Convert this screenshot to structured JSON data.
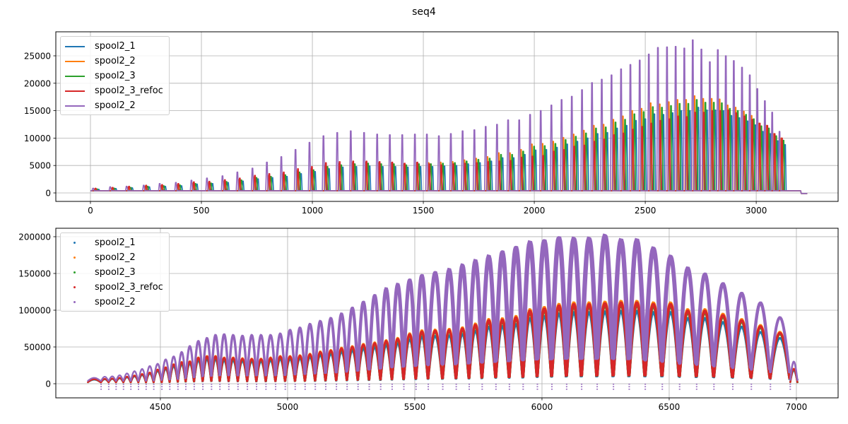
{
  "title": "seq4",
  "colors": {
    "spool2_1": "#1f77b4",
    "spool2_2": "#ff7f0e",
    "spool2_3": "#2ca02c",
    "spool2_3_refoc": "#d62728",
    "spool2_2b": "#9467bd"
  },
  "chart_data": [
    {
      "type": "line",
      "title": "seq4",
      "xlabel": "",
      "ylabel": "",
      "xlim": [
        -156,
        3369
      ],
      "ylim": [
        -1546,
        29380
      ],
      "grid": true,
      "legend_placement": "top-left",
      "xticks": [
        "0",
        "500",
        "1000",
        "1500",
        "2000",
        "2500",
        "3000"
      ],
      "xtick_values": [
        0,
        500,
        1000,
        1500,
        2000,
        2500,
        3000
      ],
      "yticks": [
        "0",
        "5000",
        "10000",
        "15000",
        "20000",
        "25000"
      ],
      "ytick_values": [
        0,
        5000,
        10000,
        15000,
        20000,
        25000
      ],
      "baseline": 400,
      "x_end": 3200,
      "peak_x": [
        12,
        89,
        163,
        240,
        312,
        385,
        455,
        525,
        595,
        662,
        730,
        795,
        860,
        924,
        987,
        1050,
        1112,
        1173,
        1233,
        1292,
        1349,
        1405,
        1462,
        1516,
        1570,
        1624,
        1677,
        1730,
        1781,
        1832,
        1882,
        1932,
        1981,
        2029,
        2077,
        2123,
        2169,
        2215,
        2260,
        2304,
        2348,
        2391,
        2433,
        2475,
        2516,
        2557,
        2598,
        2637,
        2676,
        2714,
        2753,
        2791,
        2827,
        2863,
        2899,
        2936,
        2971,
        3005,
        3039,
        3072,
        3105
      ],
      "series": [
        {
          "name": "spool2_1",
          "color_key": "spool2_1",
          "offset": 25,
          "peaks": [
            650,
            800,
            920,
            1100,
            1200,
            1300,
            1600,
            1700,
            1900,
            2150,
            2550,
            2800,
            3000,
            3500,
            3900,
            4400,
            4700,
            4800,
            4900,
            4800,
            4800,
            4700,
            4800,
            4800,
            4900,
            5000,
            5300,
            5500,
            5800,
            6400,
            6400,
            7000,
            7800,
            7900,
            8300,
            8900,
            9400,
            10000,
            10800,
            11000,
            11800,
            12300,
            13200,
            13500,
            14400,
            14300,
            14600,
            15000,
            15000,
            15600,
            15100,
            15100,
            15000,
            14100,
            13700,
            13100,
            12400,
            11200,
            10800,
            9500,
            8800
          ]
        },
        {
          "name": "spool2_2",
          "color_key": "spool2_2",
          "offset": 8,
          "peaks": [
            750,
            900,
            1050,
            1250,
            1350,
            1500,
            1800,
            1900,
            2150,
            2450,
            2900,
            3150,
            3450,
            4000,
            4400,
            5000,
            5300,
            5500,
            5600,
            5500,
            5500,
            5300,
            5500,
            5500,
            5600,
            5700,
            6000,
            6300,
            6600,
            7300,
            7300,
            7900,
            8900,
            9000,
            9400,
            10100,
            10700,
            11400,
            12300,
            12500,
            13400,
            14000,
            15000,
            15400,
            16400,
            16200,
            16600,
            17000,
            17000,
            17700,
            17200,
            17200,
            17100,
            16000,
            15600,
            14900,
            14100,
            12700,
            12300,
            10800,
            10000
          ]
        },
        {
          "name": "spool2_3",
          "color_key": "spool2_3",
          "offset": 18,
          "peaks": [
            720,
            860,
            1000,
            1200,
            1300,
            1450,
            1700,
            1800,
            2050,
            2350,
            2800,
            3000,
            3300,
            3800,
            4200,
            4800,
            5100,
            5300,
            5400,
            5300,
            5300,
            5100,
            5300,
            5300,
            5400,
            5500,
            5800,
            6100,
            6300,
            7000,
            7000,
            7600,
            8500,
            8600,
            9000,
            9700,
            10300,
            10900,
            11800,
            12000,
            12900,
            13400,
            14400,
            14800,
            15700,
            15600,
            15900,
            16300,
            16300,
            17000,
            16500,
            16500,
            16400,
            15400,
            15000,
            14300,
            13500,
            12200,
            11800,
            10400,
            9600
          ]
        },
        {
          "name": "spool2_3_refoc",
          "color_key": "spool2_3_refoc",
          "offset": 11,
          "peaks": [
            850,
            1000,
            1200,
            1400,
            1500,
            1700,
            2000,
            2100,
            2400,
            2700,
            3200,
            3500,
            3800,
            4400,
            4800,
            5500,
            5700,
            5800,
            5800,
            5700,
            5600,
            5400,
            5600,
            5300,
            5100,
            5300,
            5400,
            5500,
            5700,
            5800,
            5900,
            6500,
            6700,
            6800,
            7600,
            7900,
            8500,
            8700,
            9400,
            9800,
            10600,
            10900,
            11600,
            12100,
            12700,
            13200,
            13500,
            14000,
            13900,
            14700,
            14700,
            15000,
            15000,
            15100,
            14600,
            14000,
            13400,
            12700,
            12300,
            10800,
            10000
          ]
        },
        {
          "name": "spool2_2",
          "color_key": "spool2_2b",
          "offset": 0,
          "peaks": [
            850,
            1100,
            1200,
            1400,
            1700,
            1900,
            2300,
            2700,
            3100,
            3800,
            4500,
            5600,
            6600,
            7900,
            9200,
            10400,
            11000,
            11300,
            11000,
            10700,
            10600,
            10600,
            10700,
            10700,
            10400,
            10800,
            11300,
            11500,
            12100,
            12500,
            13300,
            13300,
            14300,
            15000,
            16000,
            17000,
            17600,
            18800,
            20100,
            20700,
            21500,
            22600,
            23400,
            24200,
            25300,
            26500,
            26600,
            26700,
            26400,
            27900,
            26200,
            23900,
            26100,
            25000,
            24100,
            22900,
            21500,
            19000,
            16800,
            14700,
            11200
          ]
        }
      ]
    },
    {
      "type": "scatter",
      "title": "",
      "xlabel": "",
      "ylabel": "",
      "xlim": [
        4089,
        7164
      ],
      "ylim": [
        -19230,
        211500
      ],
      "grid": true,
      "legend_placement": "top-left",
      "xticks": [
        "4500",
        "5000",
        "5500",
        "6000",
        "6500",
        "7000"
      ],
      "xtick_values": [
        4500,
        5000,
        5500,
        6000,
        6500,
        7000
      ],
      "yticks": [
        "0",
        "50000",
        "100000",
        "150000",
        "200000"
      ],
      "ytick_values": [
        0,
        50000,
        100000,
        150000,
        200000
      ],
      "cycle_edges": [
        4215,
        4267,
        4297,
        4326,
        4355,
        4384,
        4414,
        4444,
        4474,
        4506,
        4537,
        4569,
        4600,
        4633,
        4667,
        4701,
        4734,
        4769,
        4805,
        4842,
        4878,
        4915,
        4953,
        4991,
        5030,
        5069,
        5109,
        5150,
        5192,
        5234,
        5277,
        5321,
        5366,
        5411,
        5457,
        5505,
        5553,
        5610,
        5663,
        5714,
        5765,
        5819,
        5872,
        5926,
        5982,
        6039,
        6097,
        6156,
        6217,
        6281,
        6343,
        6406,
        6473,
        6541,
        6608,
        6676,
        6750,
        6823,
        6898,
        6976,
        7005
      ],
      "trough_ratio": 0.18,
      "dropout_min": -9000,
      "purple_peaks": [
        8000,
        9500,
        10000,
        11500,
        14000,
        17000,
        20000,
        24000,
        27000,
        33000,
        37000,
        43000,
        51000,
        58000,
        62000,
        66000,
        67000,
        66000,
        65000,
        66000,
        66000,
        66000,
        68000,
        73000,
        76000,
        81000,
        85000,
        89000,
        95000,
        103000,
        111000,
        120000,
        129000,
        135000,
        141000,
        147000,
        151000,
        155000,
        161000,
        167000,
        173000,
        179000,
        185000,
        192000,
        194000,
        198000,
        197000,
        197000,
        201000,
        195000,
        195000,
        184000,
        173000,
        157000,
        149000,
        136000,
        123000,
        110000,
        90000,
        30000
      ],
      "refoc_peaks": [
        6000,
        6500,
        7000,
        8000,
        9500,
        11000,
        13000,
        15000,
        19000,
        22000,
        26000,
        29000,
        30000,
        35000,
        37000,
        37000,
        35000,
        35000,
        34000,
        33500,
        33500,
        35000,
        37000,
        37000,
        38000,
        40000,
        43000,
        45000,
        48000,
        50000,
        53000,
        55000,
        58000,
        61000,
        67000,
        71000,
        72000,
        73000,
        75000,
        80000,
        86000,
        87000,
        90000,
        99000,
        102000,
        106000,
        108000,
        108000,
        109000,
        110000,
        110000,
        108000,
        108000,
        99000,
        99000,
        93000,
        86000,
        78000,
        69000,
        20000
      ],
      "series": [
        {
          "name": "spool2_1",
          "color_key": "spool2_1",
          "scale": 0.9,
          "base": "refoc_peaks"
        },
        {
          "name": "spool2_2",
          "color_key": "spool2_2",
          "scale": 1.02,
          "base": "refoc_peaks"
        },
        {
          "name": "spool2_3",
          "color_key": "spool2_3",
          "scale": 0.98,
          "base": "refoc_peaks"
        },
        {
          "name": "spool2_3_refoc",
          "color_key": "spool2_3_refoc",
          "scale": 1.0,
          "base": "refoc_peaks"
        },
        {
          "name": "spool2_2",
          "color_key": "spool2_2b",
          "scale": 1.0,
          "base": "purple_peaks"
        }
      ]
    }
  ]
}
